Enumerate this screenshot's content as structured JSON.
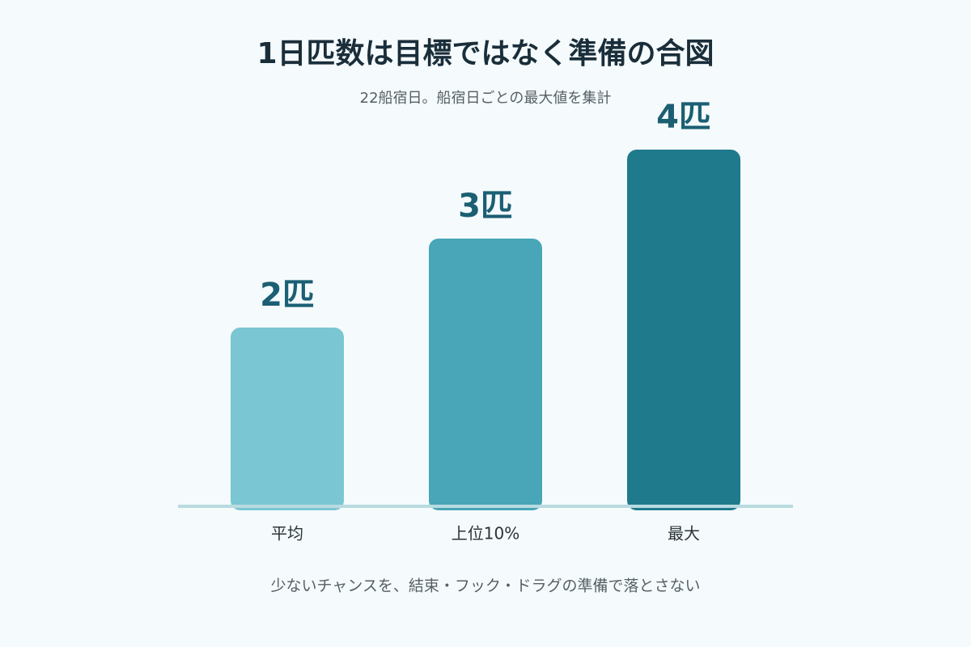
{
  "chart_data": {
    "type": "bar",
    "title": "1日匹数は目標ではなく準備の合図",
    "subtitle": "22船宿日。船宿日ごとの最大値を集計",
    "categories": [
      "平均",
      "上位10%",
      "最大"
    ],
    "values": [
      2,
      3,
      4
    ],
    "value_labels": [
      "2匹",
      "3匹",
      "4匹"
    ],
    "colors": [
      "#7ac6d2",
      "#48a6b8",
      "#1f7a8c"
    ],
    "annotation": "少ないチャンスを、結束・フック・ドラグの準備で落とさない"
  }
}
